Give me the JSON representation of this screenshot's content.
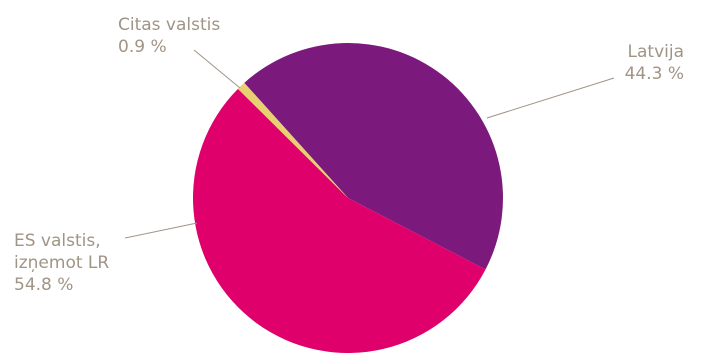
{
  "chart_data": {
    "type": "pie",
    "title": "",
    "slices": [
      {
        "name_lines": [
          "Latvija"
        ],
        "value": 44.3,
        "value_label": "44.3 %",
        "color": "#7b1a7c"
      },
      {
        "name_lines": [
          "ES valstis,",
          "izņemot LR"
        ],
        "value": 54.8,
        "value_label": "54.8 %",
        "color": "#e0006b"
      },
      {
        "name_lines": [
          "Citas valstis"
        ],
        "value": 0.9,
        "value_label": "0.9 %",
        "color": "#e8cf72"
      }
    ],
    "label_color": "#a09486"
  }
}
